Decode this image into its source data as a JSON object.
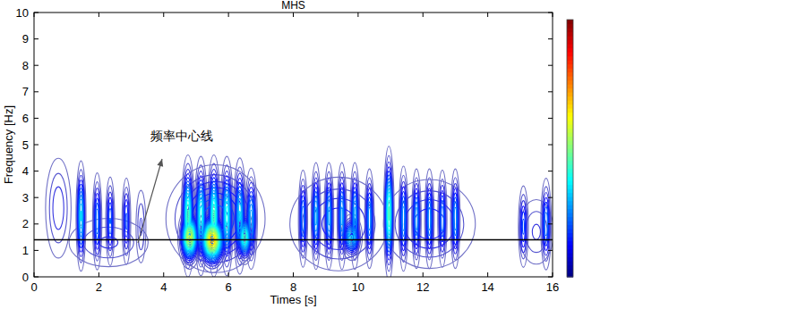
{
  "chart_data": {
    "type": "contour",
    "title": "MHS",
    "x_label": "Times [s]",
    "y_label": "Frequency [Hz]",
    "xlim": [
      0,
      16
    ],
    "ylim": [
      0,
      10
    ],
    "xticks": [
      0,
      2,
      4,
      6,
      8,
      10,
      12,
      14,
      16
    ],
    "yticks": [
      0,
      1,
      2,
      3,
      4,
      5,
      6,
      7,
      8,
      9,
      10
    ],
    "annotation": "频率中心线",
    "center_line": 1.4,
    "colorbar_range": [
      0,
      1
    ],
    "components": [
      {
        "time": 0.75,
        "frequency": 2.6,
        "amplitude": 0.12,
        "time_width": 0.24,
        "frequency_width": 1.15
      },
      {
        "time": 2.3,
        "frequency": 1.3,
        "amplitude": 0.1,
        "time_width": 0.8,
        "frequency_width": 0.6
      },
      {
        "time": 1.45,
        "frequency": 2.3,
        "amplitude": 0.35,
        "time_width": 0.07,
        "frequency_width": 0.95
      },
      {
        "time": 1.95,
        "frequency": 2.1,
        "amplitude": 0.25,
        "time_width": 0.07,
        "frequency_width": 0.9
      },
      {
        "time": 2.35,
        "frequency": 2.1,
        "amplitude": 0.22,
        "time_width": 0.07,
        "frequency_width": 0.85
      },
      {
        "time": 2.85,
        "frequency": 2.1,
        "amplitude": 0.2,
        "time_width": 0.07,
        "frequency_width": 0.85
      },
      {
        "time": 3.3,
        "frequency": 1.9,
        "amplitude": 0.1,
        "time_width": 0.1,
        "frequency_width": 0.9
      },
      {
        "time": 5.6,
        "frequency": 2.2,
        "amplitude": 0.25,
        "time_width": 0.75,
        "frequency_width": 1.0
      },
      {
        "time": 4.75,
        "frequency": 2.3,
        "amplitude": 0.45,
        "time_width": 0.09,
        "frequency_width": 1.0
      },
      {
        "time": 5.15,
        "frequency": 2.3,
        "amplitude": 0.4,
        "time_width": 0.09,
        "frequency_width": 1.0
      },
      {
        "time": 5.55,
        "frequency": 2.3,
        "amplitude": 0.45,
        "time_width": 0.09,
        "frequency_width": 1.0
      },
      {
        "time": 5.95,
        "frequency": 2.3,
        "amplitude": 0.4,
        "time_width": 0.09,
        "frequency_width": 1.0
      },
      {
        "time": 6.35,
        "frequency": 2.3,
        "amplitude": 0.35,
        "time_width": 0.09,
        "frequency_width": 1.0
      },
      {
        "time": 6.7,
        "frequency": 2.2,
        "amplitude": 0.3,
        "time_width": 0.09,
        "frequency_width": 0.9
      },
      {
        "time": 4.8,
        "frequency": 1.5,
        "amplitude": 0.6,
        "time_width": 0.15,
        "frequency_width": 0.5
      },
      {
        "time": 5.5,
        "frequency": 1.4,
        "amplitude": 0.7,
        "time_width": 0.2,
        "frequency_width": 0.5
      },
      {
        "time": 6.5,
        "frequency": 1.5,
        "amplitude": 0.45,
        "time_width": 0.12,
        "frequency_width": 0.45
      },
      {
        "time": 9.4,
        "frequency": 2.0,
        "amplitude": 0.15,
        "time_width": 0.85,
        "frequency_width": 1.0
      },
      {
        "time": 12.2,
        "frequency": 2.0,
        "amplitude": 0.15,
        "time_width": 0.8,
        "frequency_width": 0.95
      },
      {
        "time": 8.3,
        "frequency": 2.2,
        "amplitude": 0.25,
        "time_width": 0.07,
        "frequency_width": 0.9
      },
      {
        "time": 8.7,
        "frequency": 2.3,
        "amplitude": 0.3,
        "time_width": 0.07,
        "frequency_width": 0.95
      },
      {
        "time": 9.1,
        "frequency": 2.3,
        "amplitude": 0.3,
        "time_width": 0.07,
        "frequency_width": 0.95
      },
      {
        "time": 9.5,
        "frequency": 2.3,
        "amplitude": 0.3,
        "time_width": 0.07,
        "frequency_width": 0.95
      },
      {
        "time": 9.9,
        "frequency": 2.3,
        "amplitude": 0.3,
        "time_width": 0.07,
        "frequency_width": 0.95
      },
      {
        "time": 10.35,
        "frequency": 2.2,
        "amplitude": 0.28,
        "time_width": 0.07,
        "frequency_width": 0.9
      },
      {
        "time": 10.95,
        "frequency": 2.4,
        "amplitude": 0.45,
        "time_width": 0.07,
        "frequency_width": 1.1
      },
      {
        "time": 11.4,
        "frequency": 2.2,
        "amplitude": 0.28,
        "time_width": 0.07,
        "frequency_width": 0.95
      },
      {
        "time": 11.8,
        "frequency": 2.2,
        "amplitude": 0.28,
        "time_width": 0.07,
        "frequency_width": 0.9
      },
      {
        "time": 12.2,
        "frequency": 2.2,
        "amplitude": 0.28,
        "time_width": 0.07,
        "frequency_width": 0.9
      },
      {
        "time": 12.6,
        "frequency": 2.2,
        "amplitude": 0.25,
        "time_width": 0.07,
        "frequency_width": 0.9
      },
      {
        "time": 13.0,
        "frequency": 2.2,
        "amplitude": 0.28,
        "time_width": 0.07,
        "frequency_width": 0.9
      },
      {
        "time": 9.8,
        "frequency": 1.5,
        "amplitude": 0.35,
        "time_width": 0.15,
        "frequency_width": 0.4
      },
      {
        "time": 15.5,
        "frequency": 1.7,
        "amplitude": 0.1,
        "time_width": 0.35,
        "frequency_width": 0.8
      },
      {
        "time": 15.1,
        "frequency": 1.9,
        "amplitude": 0.2,
        "time_width": 0.08,
        "frequency_width": 0.8
      },
      {
        "time": 15.8,
        "frequency": 2.0,
        "amplitude": 0.25,
        "time_width": 0.08,
        "frequency_width": 0.85
      }
    ]
  }
}
